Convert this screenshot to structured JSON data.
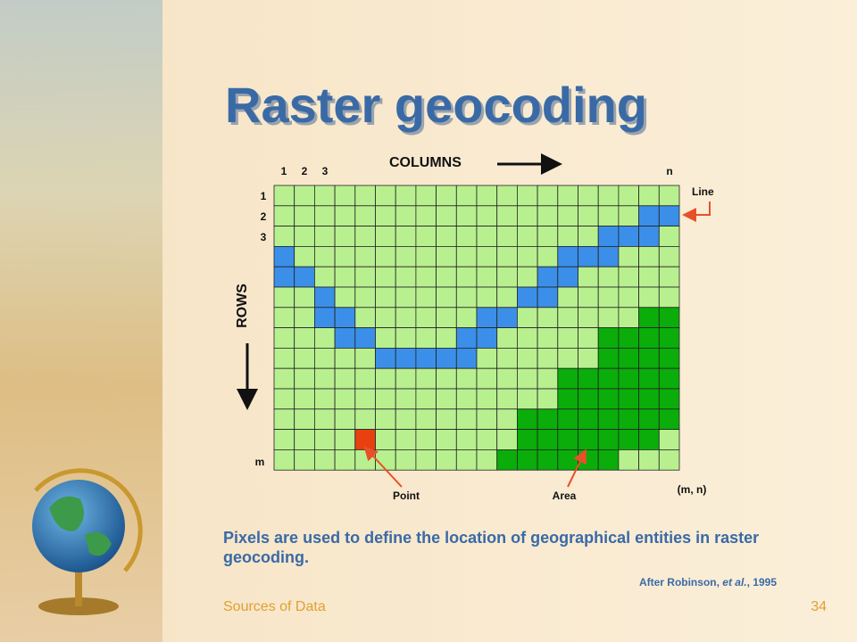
{
  "title": "Raster geocoding",
  "diagram": {
    "column_label": "COLUMNS",
    "row_label": "ROWS",
    "column_ticks": [
      "1",
      "2",
      "3",
      "n"
    ],
    "row_ticks": [
      "1",
      "2",
      "3",
      "m"
    ],
    "callouts": {
      "line": "Line",
      "point": "Point",
      "area": "Area",
      "corner": "(m, n)"
    }
  },
  "caption": "Pixels are used to define the location of geographical entities in raster geocoding.",
  "citation": {
    "before": "After Robinson, ",
    "italic": "et al.",
    "after": ", 1995"
  },
  "footer": {
    "left": "Sources of Data",
    "right": "34"
  }
}
